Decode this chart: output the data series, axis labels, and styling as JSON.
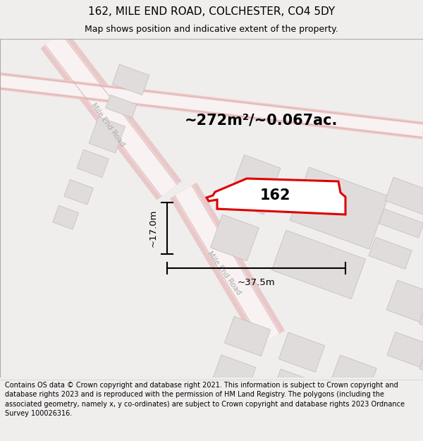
{
  "title": "162, MILE END ROAD, COLCHESTER, CO4 5DY",
  "subtitle": "Map shows position and indicative extent of the property.",
  "footer_lines": [
    "Contains OS data © Crown copyright and database right 2021. This information is subject to Crown copyright and database rights 2023 and is reproduced with the permission of",
    "HM Land Registry. The polygons (including the associated geometry, namely x, y co-ordinates) are subject to Crown copyright and database rights 2023 Ordnance Survey",
    "100026316."
  ],
  "area_label": "~272m²/~0.067ac.",
  "width_label": "~37.5m",
  "height_label": "~17.0m",
  "property_label": "162",
  "title_fontsize": 11,
  "subtitle_fontsize": 9,
  "footer_fontsize": 7,
  "area_fontsize": 15,
  "dim_fontsize": 9.5,
  "prop_label_fontsize": 15,
  "building_color": "#e0dcdc",
  "building_edge": "#c8b8b8",
  "road_band_color": "#f2e8e8",
  "road_line_color": "#e8c0c0",
  "property_fill": "#ffffff",
  "property_edge": "#dd0000",
  "map_bg": "#ffffff",
  "title_bg": "#ffffff",
  "footer_bg": "#ffffff",
  "outer_bg": "#f0eded"
}
